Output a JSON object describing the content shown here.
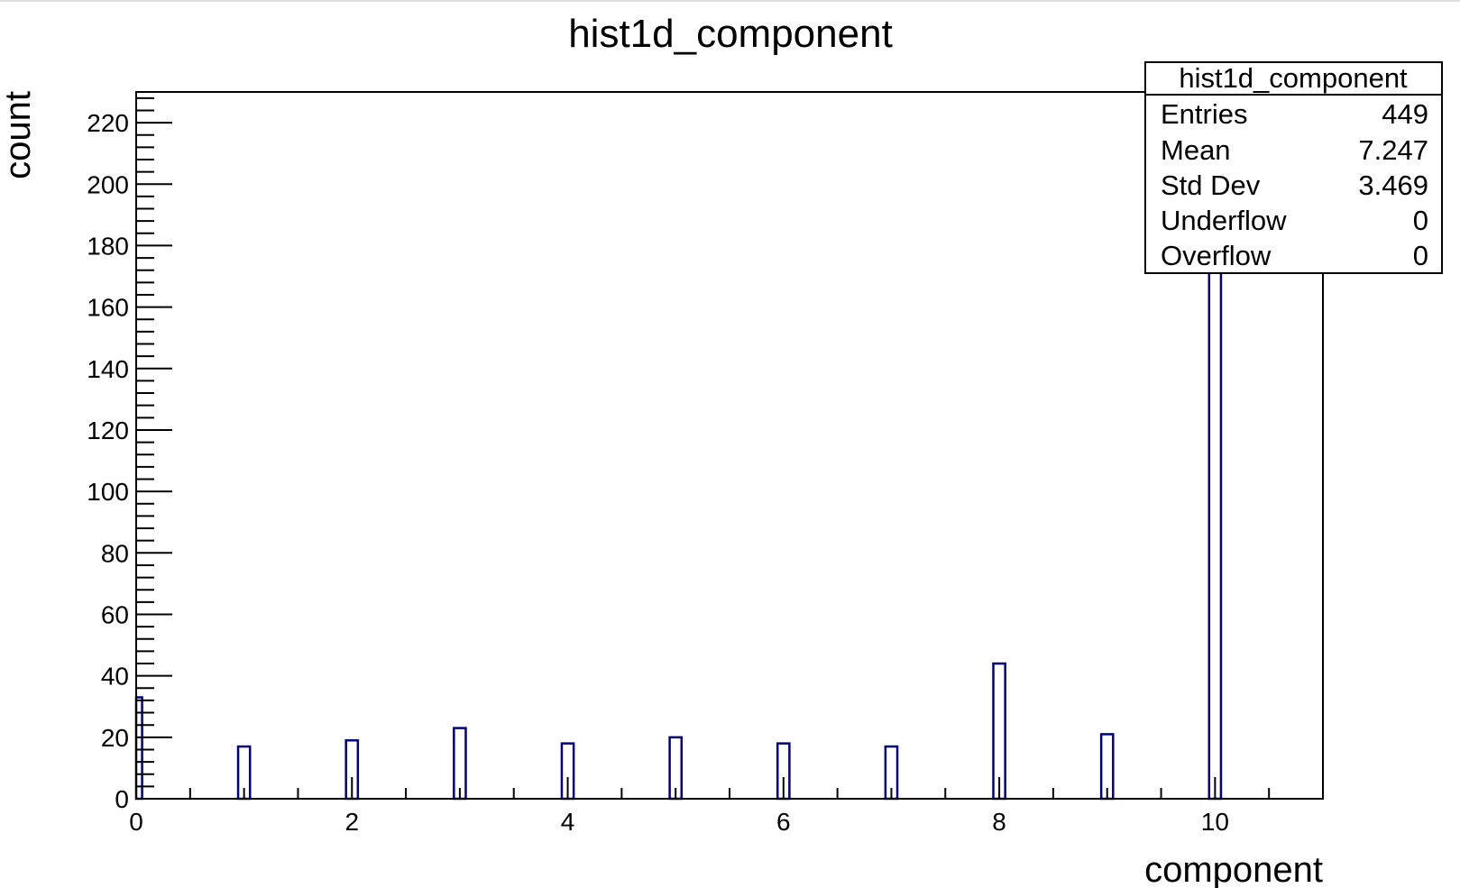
{
  "chart_data": {
    "type": "bar",
    "title": "hist1d_component",
    "xlabel": "component",
    "ylabel": "count",
    "xlim": [
      0,
      11
    ],
    "ylim": [
      0,
      230
    ],
    "xticks": [
      "0",
      "2",
      "4",
      "6",
      "8",
      "10"
    ],
    "yticks": [
      "0",
      "20",
      "40",
      "60",
      "80",
      "100",
      "120",
      "140",
      "160",
      "180",
      "200",
      "220"
    ],
    "categories": [
      0,
      1,
      2,
      3,
      4,
      5,
      6,
      7,
      8,
      9,
      10
    ],
    "values": [
      33,
      17,
      19,
      23,
      18,
      20,
      18,
      17,
      44,
      21,
      219
    ],
    "bar_color": "#000080",
    "grid": false,
    "legend": "top-right",
    "stats": {
      "name": "hist1d_component",
      "rows": [
        {
          "label": "Entries",
          "value": "449"
        },
        {
          "label": "Mean",
          "value": "7.247"
        },
        {
          "label": "Std Dev",
          "value": "3.469"
        },
        {
          "label": "Underflow",
          "value": "0"
        },
        {
          "label": "Overflow",
          "value": "0"
        }
      ]
    }
  }
}
